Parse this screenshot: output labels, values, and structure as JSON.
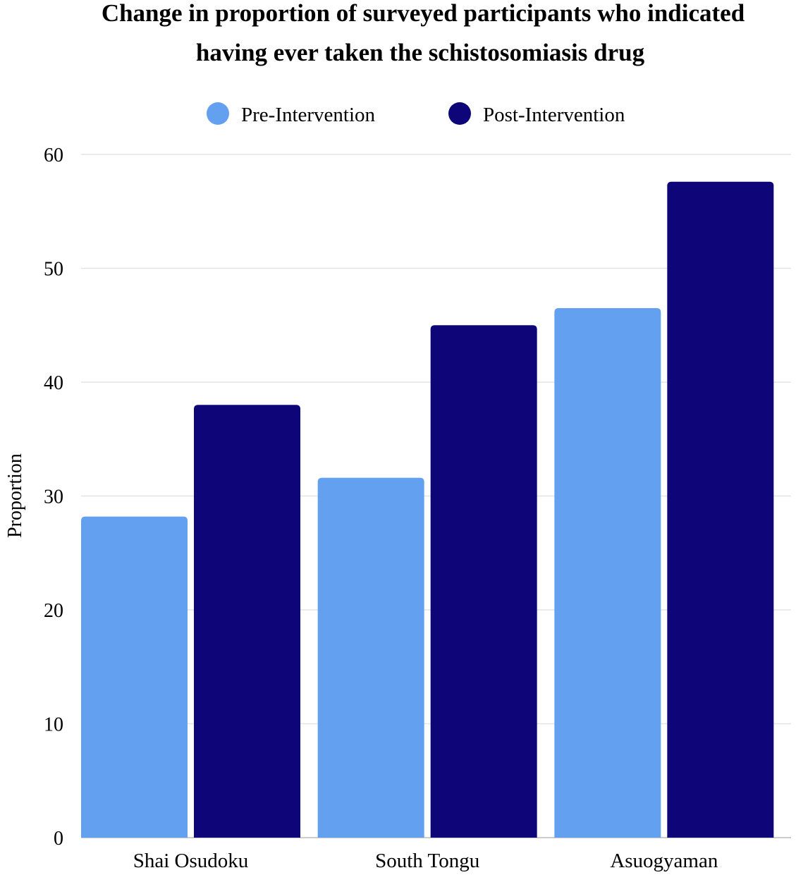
{
  "chart_data": {
    "type": "bar",
    "title": "Change in proportion of surveyed participants who indicated having ever taken the schistosomiasis drug",
    "title_lines": [
      "Change in proportion of surveyed participants who indicated",
      "having ever taken the schistosomiasis drug"
    ],
    "xlabel": "",
    "ylabel": "Proportion",
    "ylim": [
      0,
      60
    ],
    "yticks": [
      0,
      10,
      20,
      30,
      40,
      50,
      60
    ],
    "grid": true,
    "legend_placement": "top",
    "categories": [
      "Shai Osudoku",
      "South Tongu",
      "Asuogyaman"
    ],
    "series": [
      {
        "name": "Pre-Intervention",
        "color": "#64a0f0",
        "values": [
          28.2,
          31.6,
          46.5
        ]
      },
      {
        "name": "Post-Intervention",
        "color": "#0d0578",
        "values": [
          38.0,
          45.0,
          57.6
        ]
      }
    ]
  }
}
